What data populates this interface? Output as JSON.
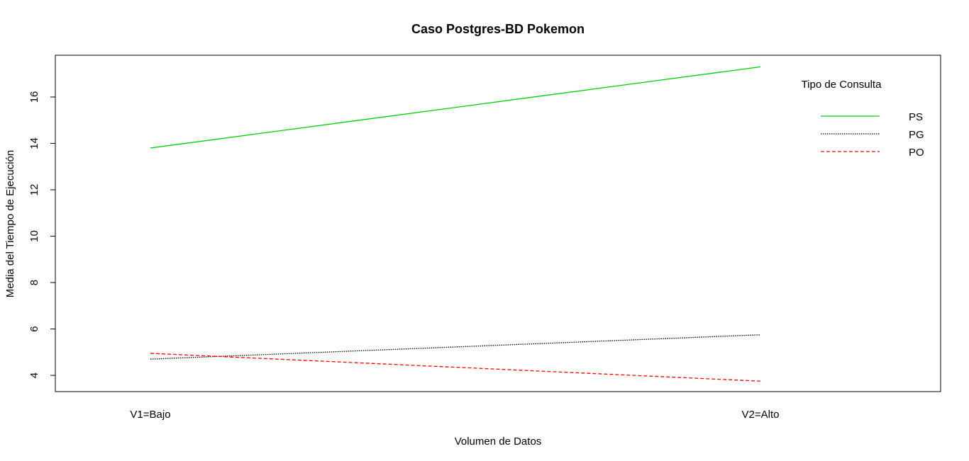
{
  "chart_data": {
    "type": "line",
    "title": "Caso Postgres-BD Pokemon",
    "xlabel": "Volumen de Datos",
    "ylabel": "Media del Tiempo de Ejecución",
    "categories": [
      "V1=Bajo",
      "V2=Alto"
    ],
    "ylim": [
      3.3,
      17.8
    ],
    "yticks": [
      4,
      6,
      8,
      10,
      12,
      14,
      16
    ],
    "grid": false,
    "legend": {
      "title": "Tipo de Consulta",
      "position": "top-right",
      "boxed": false
    },
    "series": [
      {
        "name": "PS",
        "values": [
          13.8,
          17.3
        ],
        "color": "#00cd00",
        "dash": "solid"
      },
      {
        "name": "PG",
        "values": [
          4.7,
          5.75
        ],
        "color": "#000000",
        "dash": "dotted"
      },
      {
        "name": "PO",
        "values": [
          4.95,
          3.75
        ],
        "color": "#ff0000",
        "dash": "dashed"
      }
    ]
  }
}
